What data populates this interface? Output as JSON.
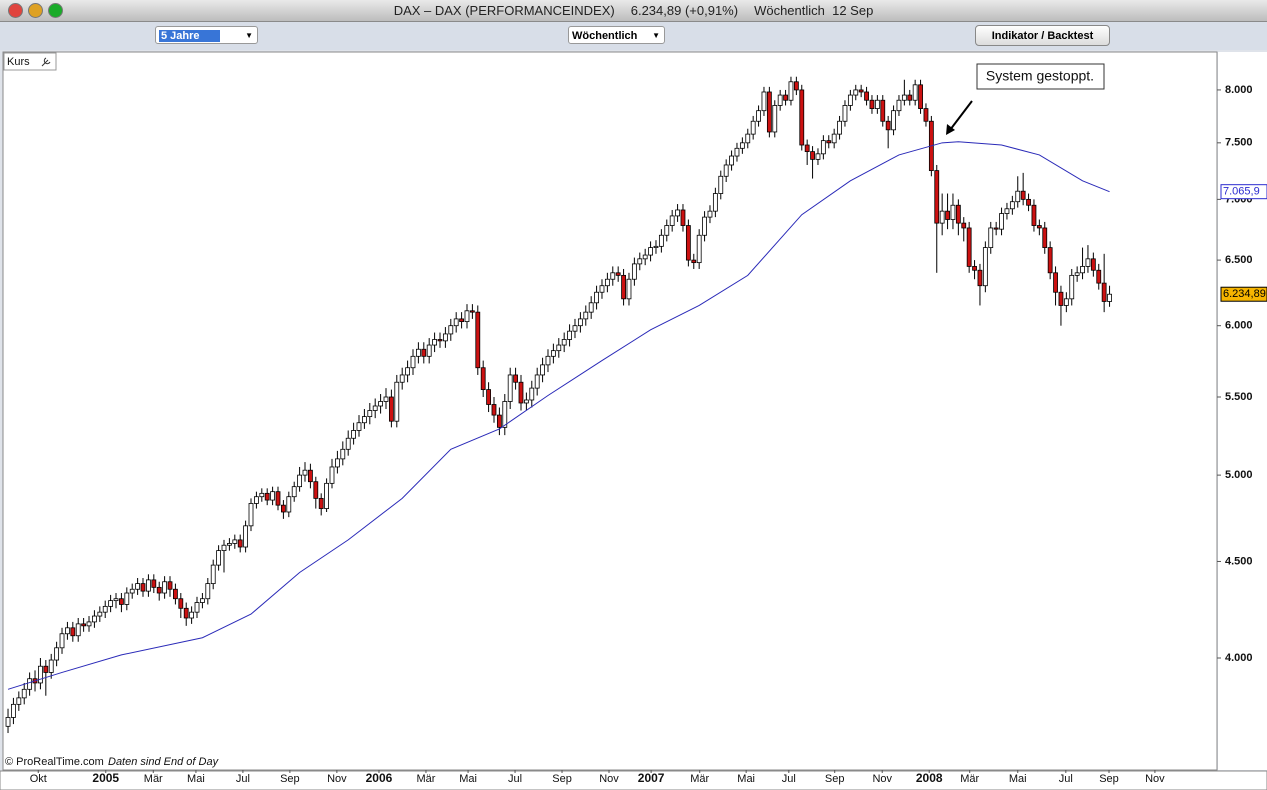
{
  "window": {
    "title": "DAX – DAX (PERFORMANCEINDEX)",
    "quote": "6.234,89 (+0,91%)",
    "interval": "Wöchentlich  12 Sep"
  },
  "toolbar": {
    "period": "5 Jahre",
    "timeframe": "Wöchentlich",
    "button": "Indikator / Backtest"
  },
  "panel": {
    "label": "Kurs",
    "copyright": "© ProRealTime.com",
    "note": "Daten sind End of Day"
  },
  "chart_data": {
    "type": "candlestick",
    "log_y": true,
    "annotation": "System gestoppt.",
    "ylim": [
      3489,
      8379
    ],
    "yticks": [
      {
        "value": 4000,
        "label": "4.000"
      },
      {
        "value": 4500,
        "label": "4.500"
      },
      {
        "value": 5000,
        "label": "5.000"
      },
      {
        "value": 5500,
        "label": "5.500"
      },
      {
        "value": 6000,
        "label": "6.000"
      },
      {
        "value": 6500,
        "label": "6.500"
      },
      {
        "value": 7000,
        "label": "7.000"
      },
      {
        "value": 7500,
        "label": "7.500"
      },
      {
        "value": 8000,
        "label": "8.000"
      }
    ],
    "xlim": [
      -0.93,
      223.9
    ],
    "xticks": [
      {
        "value": 5.6,
        "label": "Okt"
      },
      {
        "value": 18.1,
        "label": "2005"
      },
      {
        "value": 26.9,
        "label": "Mär"
      },
      {
        "value": 34.8,
        "label": "Mai"
      },
      {
        "value": 43.5,
        "label": "Jul"
      },
      {
        "value": 52.2,
        "label": "Sep"
      },
      {
        "value": 60.9,
        "label": "Nov"
      },
      {
        "value": 68.7,
        "label": "2006"
      },
      {
        "value": 77.4,
        "label": "Mär"
      },
      {
        "value": 85.2,
        "label": "Mai"
      },
      {
        "value": 93.9,
        "label": "Jul"
      },
      {
        "value": 102.6,
        "label": "Sep"
      },
      {
        "value": 111.3,
        "label": "Nov"
      },
      {
        "value": 119.1,
        "label": "2007"
      },
      {
        "value": 128.1,
        "label": "Mär"
      },
      {
        "value": 136.7,
        "label": "Mai"
      },
      {
        "value": 144.6,
        "label": "Jul"
      },
      {
        "value": 153.1,
        "label": "Sep"
      },
      {
        "value": 161.9,
        "label": "Nov"
      },
      {
        "value": 170.6,
        "label": "2008"
      },
      {
        "value": 178.1,
        "label": "Mär"
      },
      {
        "value": 187.0,
        "label": "Mai"
      },
      {
        "value": 195.9,
        "label": "Jul"
      },
      {
        "value": 203.9,
        "label": "Sep"
      },
      {
        "value": 212.4,
        "label": "Nov"
      }
    ],
    "price_tags": [
      {
        "value": 7065.9,
        "label": "7.065,9",
        "color": "#2b2bd0",
        "background": "#ffffff"
      },
      {
        "value": 6234.89,
        "label": "6.234,89",
        "color": "#000000",
        "background": "#f7b500"
      }
    ],
    "series": [
      {
        "type": "candlestick",
        "color_up": "#ffffff",
        "color_down": "#cc1111",
        "open": [
          3680,
          3720,
          3780,
          3810,
          3850,
          3900,
          3880,
          3960,
          3930,
          3990,
          4050,
          4120,
          4150,
          4110,
          4170,
          4160,
          4180,
          4210,
          4230,
          4260,
          4290,
          4300,
          4270,
          4330,
          4350,
          4380,
          4340,
          4400,
          4360,
          4330,
          4390,
          4350,
          4300,
          4250,
          4200,
          4230,
          4280,
          4300,
          4380,
          4480,
          4560,
          4590,
          4600,
          4620,
          4580,
          4700,
          4830,
          4870,
          4890,
          4850,
          4900,
          4820,
          4780,
          4870,
          4930,
          5000,
          5030,
          4960,
          4860,
          4800,
          4950,
          5050,
          5100,
          5160,
          5230,
          5280,
          5330,
          5370,
          5410,
          5440,
          5470,
          5500,
          5340,
          5600,
          5650,
          5700,
          5780,
          5830,
          5780,
          5860,
          5900,
          5890,
          5940,
          6000,
          6050,
          6030,
          6110,
          6100,
          5700,
          5550,
          5450,
          5380,
          5300,
          5470,
          5650,
          5600,
          5460,
          5480,
          5560,
          5650,
          5720,
          5780,
          5820,
          5860,
          5900,
          5960,
          6000,
          6050,
          6100,
          6170,
          6250,
          6300,
          6350,
          6400,
          6380,
          6200,
          6350,
          6470,
          6510,
          6540,
          6600,
          6610,
          6700,
          6780,
          6860,
          6910,
          6780,
          6500,
          6480,
          6700,
          6850,
          6900,
          7050,
          7200,
          7300,
          7380,
          7450,
          7500,
          7580,
          7700,
          7800,
          7980,
          7600,
          7850,
          7950,
          7900,
          8080,
          8000,
          7480,
          7420,
          7350,
          7400,
          7520,
          7500,
          7580,
          7700,
          7850,
          7950,
          8000,
          7980,
          7900,
          7820,
          7900,
          7700,
          7620,
          7800,
          7900,
          7950,
          7900,
          8050,
          7820,
          7700,
          7250,
          6800,
          6900,
          6830,
          6950,
          6800,
          6760,
          6450,
          6420,
          6300,
          6600,
          6760,
          6750,
          6880,
          6920,
          6980,
          7070,
          7000,
          6950,
          6780,
          6760,
          6600,
          6400,
          6250,
          6150,
          6200,
          6380,
          6400,
          6450,
          6510,
          6420,
          6320,
          6180
        ],
        "high": [
          3760,
          3810,
          3840,
          3880,
          3930,
          3940,
          4000,
          3990,
          4020,
          4080,
          4150,
          4180,
          4180,
          4200,
          4200,
          4210,
          4240,
          4260,
          4290,
          4320,
          4330,
          4330,
          4360,
          4380,
          4410,
          4410,
          4430,
          4430,
          4390,
          4420,
          4420,
          4380,
          4330,
          4280,
          4260,
          4310,
          4330,
          4410,
          4510,
          4590,
          4620,
          4630,
          4650,
          4650,
          4730,
          4860,
          4900,
          4920,
          4920,
          4930,
          4930,
          4850,
          4900,
          4960,
          5050,
          5080,
          5070,
          4990,
          4890,
          4980,
          5100,
          5150,
          5210,
          5280,
          5330,
          5380,
          5420,
          5460,
          5490,
          5520,
          5560,
          5550,
          5650,
          5700,
          5750,
          5830,
          5880,
          5880,
          5910,
          5950,
          5950,
          5990,
          6050,
          6100,
          6100,
          6160,
          6160,
          6150,
          5750,
          5600,
          5500,
          5430,
          5520,
          5700,
          5700,
          5650,
          5530,
          5610,
          5700,
          5770,
          5830,
          5870,
          5910,
          5950,
          6010,
          6050,
          6100,
          6150,
          6220,
          6300,
          6350,
          6400,
          6450,
          6450,
          6430,
          6400,
          6520,
          6560,
          6590,
          6650,
          6660,
          6750,
          6830,
          6910,
          6960,
          6960,
          6830,
          6550,
          6750,
          6900,
          6950,
          7100,
          7250,
          7350,
          7430,
          7500,
          7550,
          7630,
          7750,
          7850,
          8030,
          8030,
          7900,
          8000,
          8000,
          8130,
          8130,
          8050,
          7530,
          7470,
          7450,
          7570,
          7570,
          7630,
          7750,
          7900,
          8000,
          8050,
          8050,
          8030,
          7950,
          7950,
          7950,
          7750,
          7850,
          7950,
          8100,
          8000,
          8100,
          8100,
          7870,
          7750,
          7300,
          7050,
          7050,
          7050,
          7000,
          6850,
          6810,
          6500,
          6470,
          6650,
          6810,
          6810,
          6930,
          6970,
          7030,
          7200,
          7230,
          7050,
          7000,
          6830,
          6810,
          6650,
          6450,
          6300,
          6250,
          6430,
          6450,
          6600,
          6620,
          6560,
          6470,
          6550,
          6300
        ],
        "low": [
          3650,
          3690,
          3750,
          3780,
          3820,
          3840,
          3850,
          3820,
          3900,
          3960,
          4020,
          4090,
          4080,
          4080,
          4130,
          4130,
          4150,
          4180,
          4200,
          4230,
          4250,
          4230,
          4240,
          4300,
          4320,
          4310,
          4310,
          4330,
          4290,
          4300,
          4310,
          4270,
          4200,
          4160,
          4170,
          4200,
          4250,
          4270,
          4350,
          4450,
          4440,
          4560,
          4570,
          4550,
          4550,
          4670,
          4800,
          4840,
          4820,
          4820,
          4790,
          4740,
          4750,
          4840,
          4900,
          4960,
          4920,
          4800,
          4760,
          4780,
          4920,
          5010,
          5060,
          5120,
          5190,
          5240,
          5290,
          5320,
          5360,
          5390,
          5420,
          5300,
          5300,
          5550,
          5600,
          5650,
          5730,
          5730,
          5730,
          5810,
          5840,
          5840,
          5890,
          5950,
          5980,
          5980,
          6050,
          5650,
          5500,
          5400,
          5330,
          5250,
          5250,
          5420,
          5550,
          5410,
          5410,
          5430,
          5510,
          5600,
          5670,
          5730,
          5770,
          5810,
          5850,
          5910,
          5950,
          6000,
          6050,
          6120,
          6200,
          6250,
          6300,
          6330,
          6150,
          6150,
          6300,
          6420,
          6460,
          6490,
          6550,
          6560,
          6650,
          6730,
          6810,
          6730,
          6450,
          6430,
          6430,
          6650,
          6800,
          6850,
          7000,
          7150,
          7250,
          7330,
          7400,
          7450,
          7530,
          7650,
          7750,
          7550,
          7550,
          7800,
          7850,
          7850,
          7950,
          7430,
          7300,
          7180,
          7300,
          7350,
          7450,
          7450,
          7530,
          7650,
          7800,
          7900,
          7930,
          7850,
          7770,
          7770,
          7650,
          7450,
          7570,
          7750,
          7850,
          7850,
          7850,
          7770,
          7650,
          7200,
          6400,
          6700,
          6750,
          6750,
          6700,
          6650,
          6400,
          6350,
          6150,
          6250,
          6550,
          6700,
          6700,
          6830,
          6870,
          6930,
          6950,
          6900,
          6730,
          6700,
          6550,
          6350,
          6150,
          6000,
          6100,
          6150,
          6330,
          6350,
          6400,
          6370,
          6270,
          6100,
          6140
        ],
        "close": [
          3720,
          3780,
          3810,
          3850,
          3900,
          3880,
          3960,
          3930,
          3990,
          4050,
          4120,
          4150,
          4110,
          4170,
          4160,
          4180,
          4210,
          4230,
          4260,
          4290,
          4300,
          4270,
          4330,
          4350,
          4380,
          4340,
          4400,
          4360,
          4330,
          4390,
          4350,
          4300,
          4250,
          4200,
          4230,
          4280,
          4300,
          4380,
          4480,
          4560,
          4590,
          4600,
          4620,
          4580,
          4700,
          4830,
          4870,
          4890,
          4850,
          4900,
          4820,
          4780,
          4870,
          4930,
          5000,
          5030,
          4960,
          4860,
          4800,
          4950,
          5050,
          5100,
          5160,
          5230,
          5280,
          5330,
          5370,
          5410,
          5440,
          5470,
          5500,
          5340,
          5600,
          5650,
          5700,
          5780,
          5830,
          5780,
          5860,
          5900,
          5890,
          5940,
          6000,
          6050,
          6030,
          6110,
          6100,
          5700,
          5550,
          5450,
          5380,
          5300,
          5470,
          5650,
          5600,
          5460,
          5480,
          5560,
          5650,
          5720,
          5780,
          5820,
          5860,
          5900,
          5960,
          6000,
          6050,
          6100,
          6170,
          6250,
          6300,
          6350,
          6400,
          6380,
          6200,
          6350,
          6470,
          6510,
          6540,
          6600,
          6610,
          6700,
          6780,
          6860,
          6910,
          6780,
          6500,
          6480,
          6700,
          6850,
          6900,
          7050,
          7200,
          7300,
          7380,
          7450,
          7500,
          7580,
          7700,
          7800,
          7980,
          7600,
          7850,
          7950,
          7900,
          8080,
          8000,
          7480,
          7420,
          7350,
          7400,
          7520,
          7500,
          7580,
          7700,
          7850,
          7950,
          8000,
          7980,
          7900,
          7820,
          7900,
          7700,
          7620,
          7800,
          7900,
          7950,
          7900,
          8050,
          7820,
          7700,
          7250,
          6800,
          6900,
          6830,
          6950,
          6800,
          6760,
          6450,
          6420,
          6300,
          6600,
          6760,
          6750,
          6880,
          6920,
          6980,
          7070,
          7000,
          6950,
          6780,
          6760,
          6600,
          6400,
          6250,
          6150,
          6200,
          6380,
          6400,
          6450,
          6510,
          6420,
          6320,
          6180,
          6234.89
        ]
      },
      {
        "type": "line",
        "color": "#2a2ab8",
        "x": [
          0,
          10,
          21,
          36,
          45,
          54,
          63,
          73,
          82,
          91,
          100,
          110,
          119,
          128,
          137,
          147,
          156,
          165,
          173,
          176,
          184,
          191,
          199,
          204
        ],
        "values": [
          3850,
          3930,
          4015,
          4100,
          4220,
          4440,
          4620,
          4860,
          5160,
          5290,
          5510,
          5750,
          5970,
          6150,
          6380,
          6870,
          7160,
          7390,
          7500,
          7510,
          7480,
          7390,
          7160,
          7065.9
        ]
      }
    ]
  }
}
